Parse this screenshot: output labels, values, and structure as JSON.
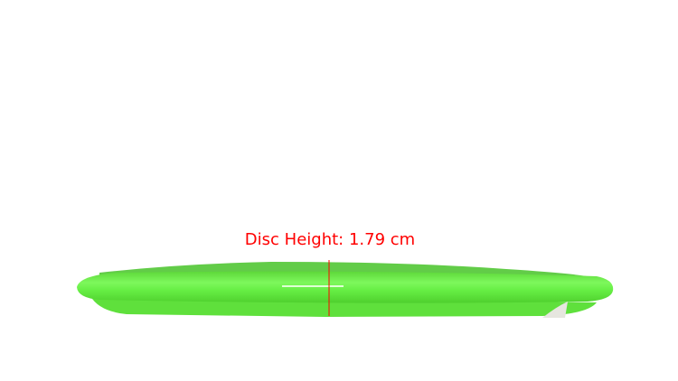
{
  "annotation": {
    "text": "Disc Height: 1.79 cm",
    "color": "#ff0000"
  },
  "disc": {
    "color": "#66ee44"
  }
}
